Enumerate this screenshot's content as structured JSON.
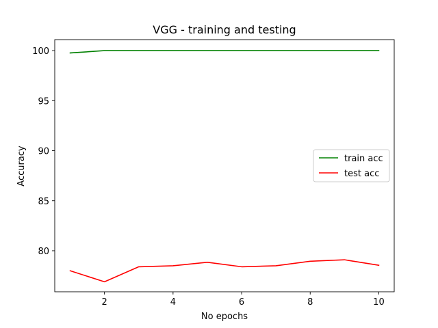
{
  "chart_data": {
    "type": "line",
    "title": "VGG - training and testing",
    "xlabel": "No epochs",
    "ylabel": "Accuracy",
    "x": [
      1,
      2,
      3,
      4,
      5,
      6,
      7,
      8,
      9,
      10
    ],
    "xlim": [
      0.55,
      10.45
    ],
    "ylim": [
      75.9,
      101.1
    ],
    "xticks": [
      2,
      4,
      6,
      8,
      10
    ],
    "yticks": [
      80,
      85,
      90,
      95,
      100
    ],
    "grid": false,
    "legend_position": "center-right",
    "series": [
      {
        "name": "train acc",
        "color": "#008000",
        "values": [
          99.77,
          100.0,
          100.0,
          100.0,
          100.0,
          100.0,
          100.0,
          100.0,
          100.0,
          100.0
        ]
      },
      {
        "name": "test acc",
        "color": "#ff0000",
        "values": [
          78.0,
          76.9,
          78.4,
          78.5,
          78.85,
          78.4,
          78.5,
          78.95,
          79.1,
          78.55
        ]
      }
    ]
  }
}
